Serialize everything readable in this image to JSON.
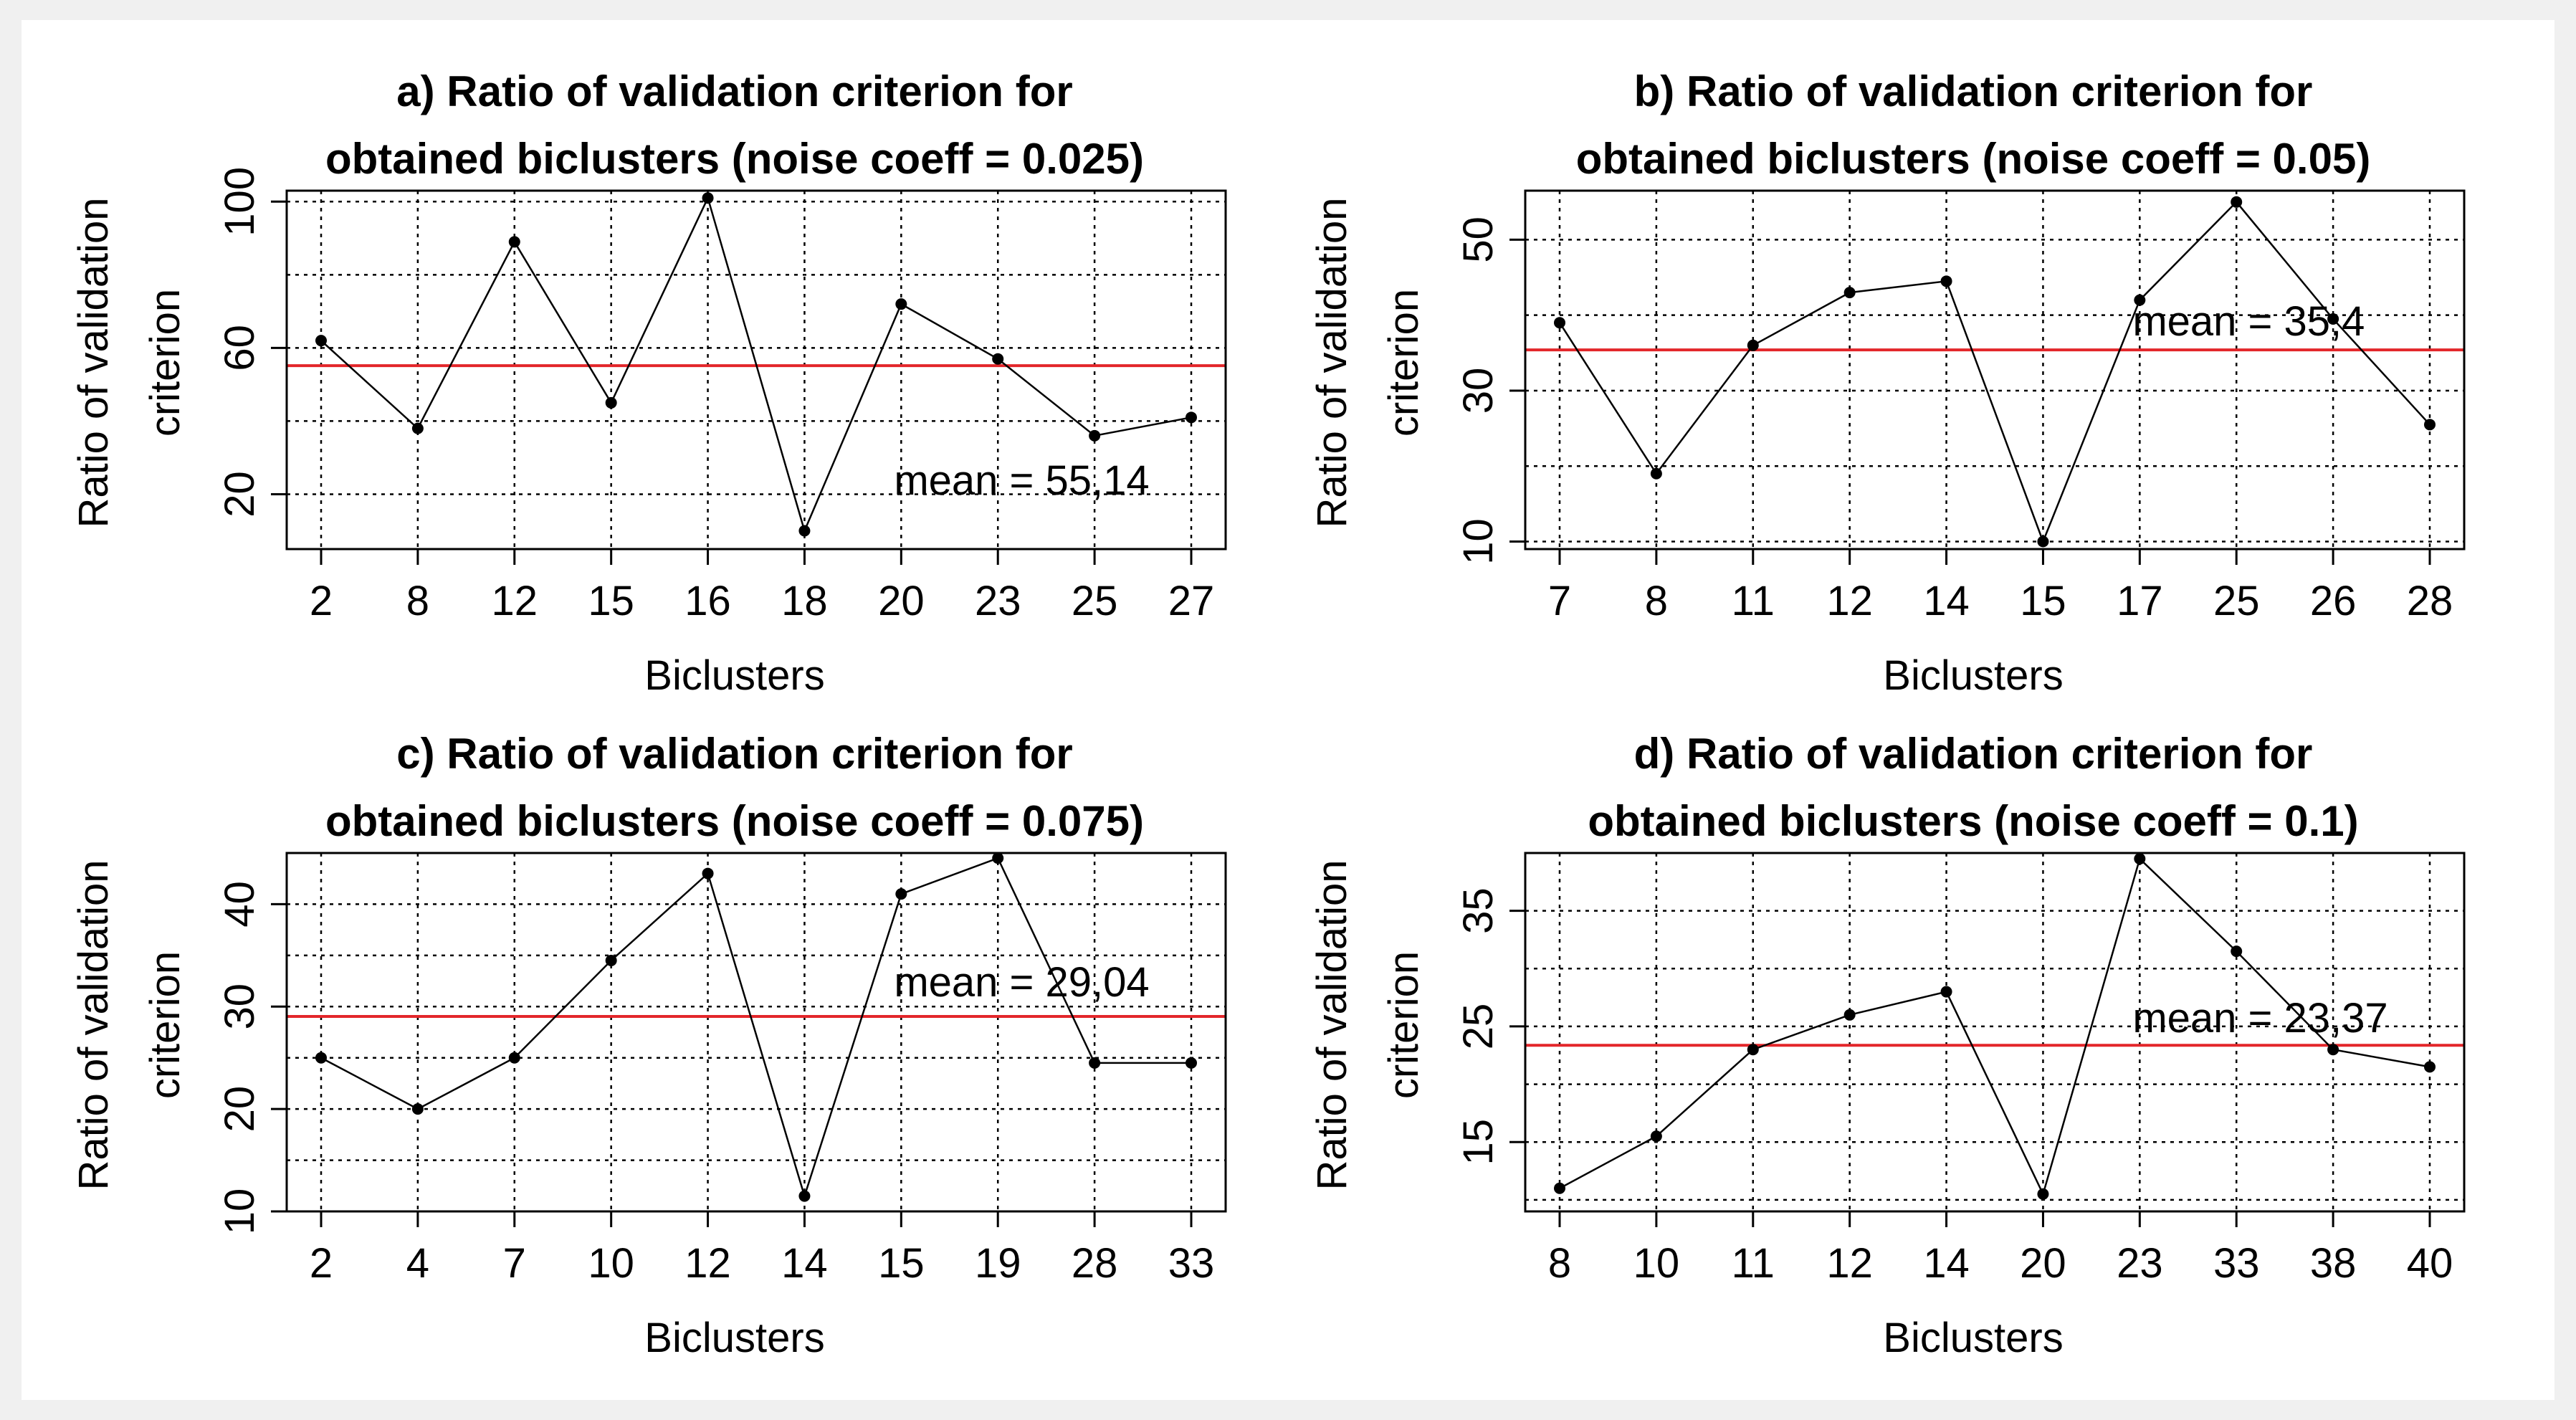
{
  "chart_data": [
    {
      "type": "line",
      "title_line1": "a) Ratio of validation criterion for",
      "title_line2": "obtained biclusters (noise coeff = 0.025)",
      "xlabel": "Biclusters",
      "ylabel_line1": "Ratio of validation",
      "ylabel_line2": "criterion",
      "categories": [
        "2",
        "8",
        "12",
        "15",
        "16",
        "18",
        "20",
        "23",
        "25",
        "27"
      ],
      "values": [
        62,
        38,
        89,
        45,
        101,
        10,
        72,
        57,
        36,
        41
      ],
      "ylim": [
        5,
        103
      ],
      "yticks": [
        20,
        60,
        100
      ],
      "ygrid": [
        20,
        40,
        60,
        80,
        100
      ],
      "mean": 55.14,
      "mean_label": "mean = 55,14",
      "mean_label_anchor": 19.9,
      "colors": {
        "mean_line": "#e3262a",
        "series": "#000000"
      }
    },
    {
      "type": "line",
      "title_line1": "b) Ratio of validation criterion for",
      "title_line2": "obtained biclusters (noise coeff = 0.05)",
      "xlabel": "Biclusters",
      "ylabel_line1": "Ratio of validation",
      "ylabel_line2": "criterion",
      "categories": [
        "7",
        "8",
        "11",
        "12",
        "14",
        "15",
        "17",
        "25",
        "26",
        "28"
      ],
      "values": [
        39,
        19,
        36,
        43,
        44.5,
        10,
        42,
        55,
        39.5,
        25.5
      ],
      "ylim": [
        9,
        56.5
      ],
      "yticks": [
        10,
        30,
        50
      ],
      "ygrid": [
        10,
        20,
        30,
        40,
        50
      ],
      "mean": 35.4,
      "mean_label": "mean = 35,4",
      "mean_label_anchor": 37.3,
      "colors": {
        "mean_line": "#e3262a",
        "series": "#000000"
      }
    },
    {
      "type": "line",
      "title_line1": "c) Ratio of validation criterion for",
      "title_line2": "obtained biclusters (noise coeff = 0.075)",
      "xlabel": "Biclusters",
      "ylabel_line1": "Ratio of validation",
      "ylabel_line2": "criterion",
      "categories": [
        "2",
        "4",
        "7",
        "10",
        "12",
        "14",
        "15",
        "19",
        "28",
        "33"
      ],
      "values": [
        25,
        20,
        25,
        34.5,
        43,
        11.5,
        41,
        44.5,
        24.5,
        24.5
      ],
      "ylim": [
        10,
        45
      ],
      "yticks": [
        10,
        20,
        30,
        40
      ],
      "ygrid": [
        10,
        15,
        20,
        25,
        30,
        35,
        40
      ],
      "mean": 29.04,
      "mean_label": "mean = 29,04",
      "mean_label_anchor": 31,
      "colors": {
        "mean_line": "#e3262a",
        "series": "#000000"
      }
    },
    {
      "type": "line",
      "title_line1": "d) Ratio of validation criterion for",
      "title_line2": "obtained biclusters (noise coeff = 0.1)",
      "xlabel": "Biclusters",
      "ylabel_line1": "Ratio of validation",
      "ylabel_line2": "criterion",
      "categories": [
        "8",
        "10",
        "11",
        "12",
        "14",
        "20",
        "23",
        "33",
        "38",
        "40"
      ],
      "values": [
        11,
        15.5,
        23,
        26,
        28,
        10.5,
        39.5,
        31.5,
        23,
        21.5
      ],
      "ylim": [
        9,
        40
      ],
      "yticks": [
        15,
        25,
        35
      ],
      "ygrid": [
        10,
        15,
        20,
        25,
        30,
        35,
        40
      ],
      "mean": 23.37,
      "mean_label": "mean = 23,37",
      "mean_label_anchor": 24.5,
      "colors": {
        "mean_line": "#e3262a",
        "series": "#000000"
      }
    }
  ]
}
